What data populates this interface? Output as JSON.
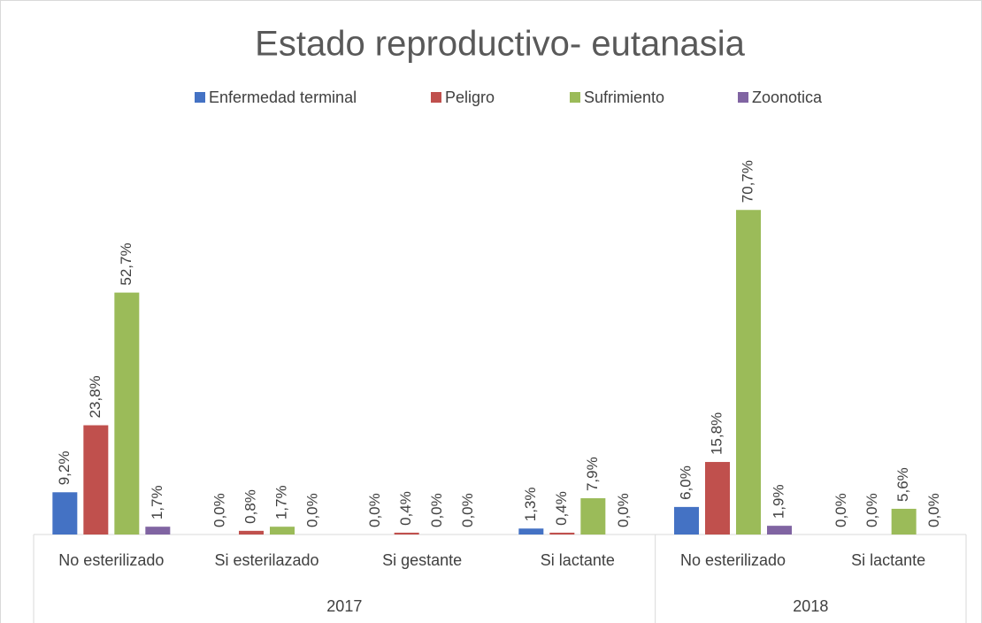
{
  "chart_data": {
    "type": "bar",
    "title": "Estado reproductivo- eutanasia",
    "groups": [
      {
        "name": "2017",
        "categories": [
          "No esterilizado",
          "Si esterilazado",
          "Si gestante",
          "Si lactante"
        ]
      },
      {
        "name": "2018",
        "categories": [
          "No esterilizado",
          "Si lactante"
        ]
      }
    ],
    "series": [
      {
        "name": "Enfermedad terminal",
        "color": "#4472c4",
        "values": [
          9.2,
          0.0,
          0.0,
          1.3,
          6.0,
          0.0
        ],
        "value_labels": [
          "9,2%",
          "0,0%",
          "0,0%",
          "1,3%",
          "6,0%",
          "0,0%"
        ]
      },
      {
        "name": "Peligro",
        "color": "#c0504d",
        "values": [
          23.8,
          0.8,
          0.4,
          0.4,
          15.8,
          0.0
        ],
        "value_labels": [
          "23,8%",
          "0,8%",
          "0,4%",
          "0,4%",
          "15,8%",
          "0,0%"
        ]
      },
      {
        "name": "Sufrimiento",
        "color": "#9bbb59",
        "values": [
          52.7,
          1.7,
          0.0,
          7.9,
          70.7,
          5.6
        ],
        "value_labels": [
          "52,7%",
          "1,7%",
          "0,0%",
          "7,9%",
          "70,7%",
          "5,6%"
        ]
      },
      {
        "name": "Zoonotica",
        "color": "#8064a2",
        "values": [
          1.7,
          0.0,
          0.0,
          0.0,
          1.9,
          0.0
        ],
        "value_labels": [
          "1,7%",
          "0,0%",
          "0,0%",
          "0,0%",
          "1,9%",
          "0,0%"
        ]
      }
    ],
    "ylim": [
      0,
      80
    ],
    "legend": "top"
  }
}
